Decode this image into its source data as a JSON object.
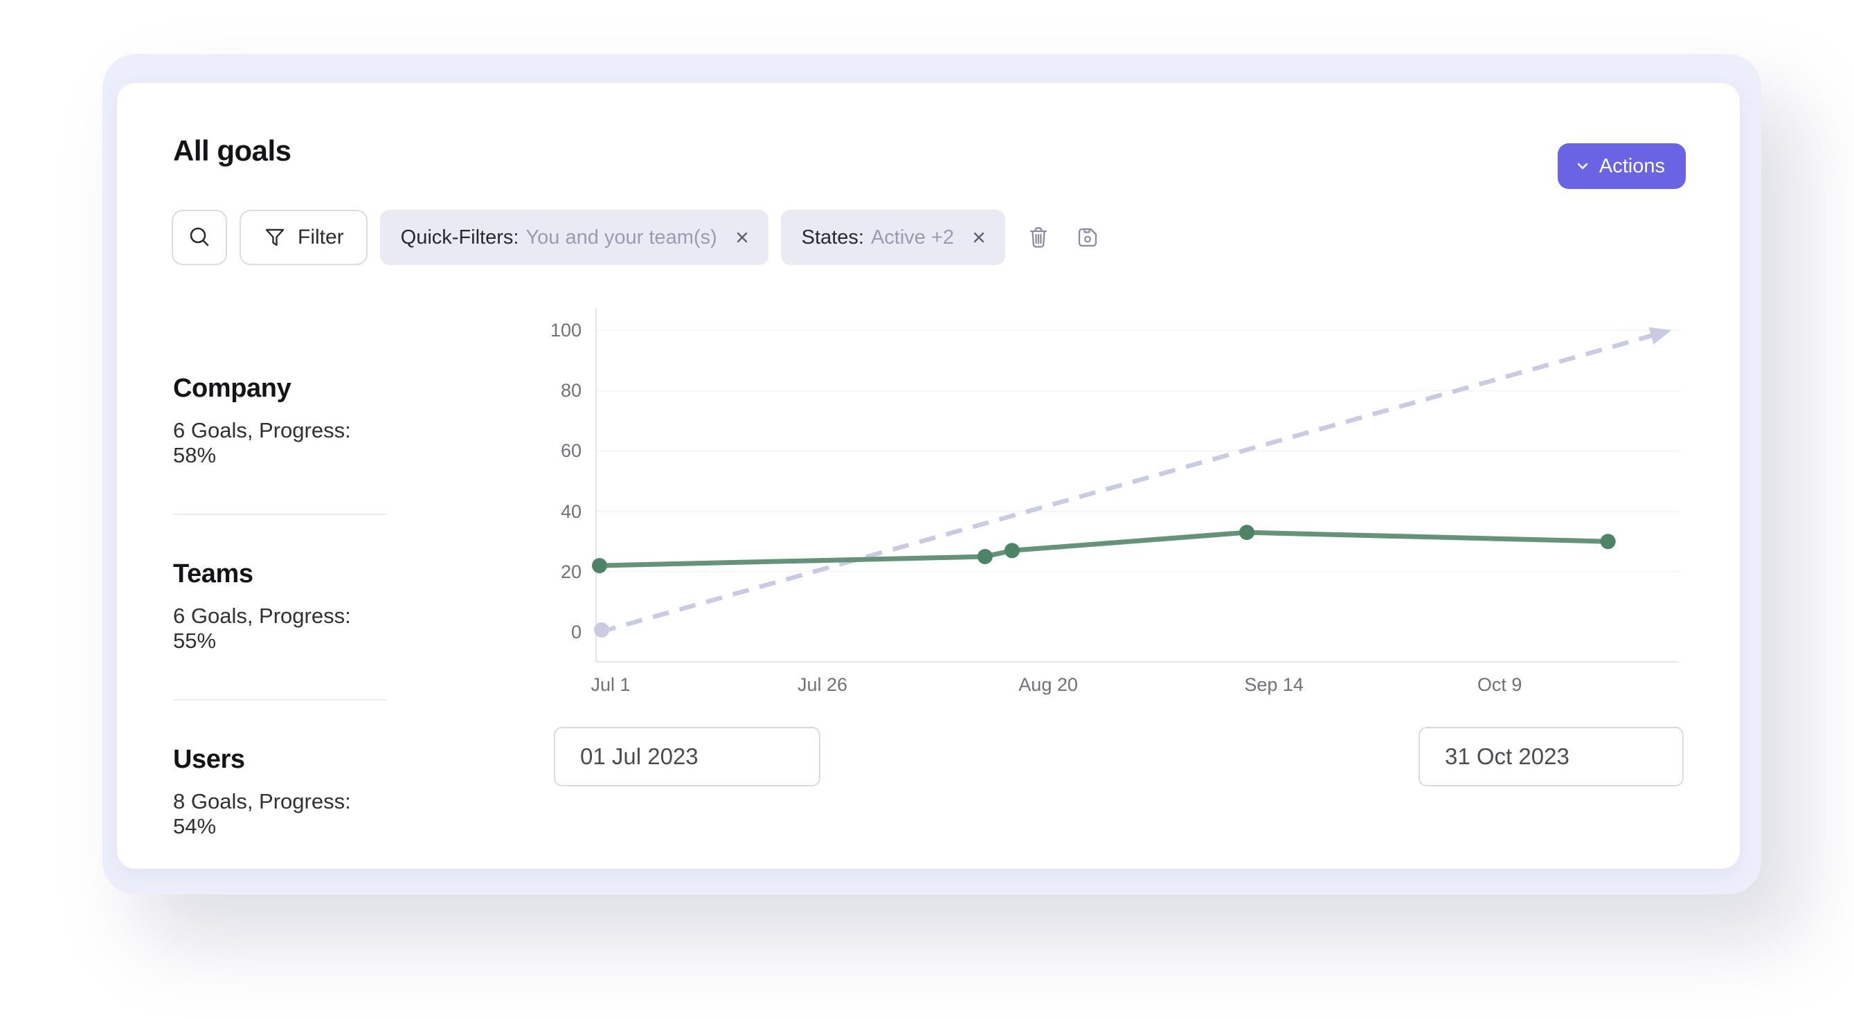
{
  "header": {
    "title": "All goals",
    "actions_label": "Actions"
  },
  "toolbar": {
    "filter_label": "Filter",
    "chips": [
      {
        "label": "Quick-Filters:",
        "value": "You and your team(s)"
      },
      {
        "label": "States:",
        "value": "Active +2"
      }
    ],
    "icon_names": [
      "search-icon",
      "filter-funnel-icon",
      "trash-icon",
      "save-icon"
    ]
  },
  "summary": {
    "items": [
      {
        "title": "Company",
        "subtitle": "6 Goals, Progress: 58%"
      },
      {
        "title": "Teams",
        "subtitle": "6 Goals, Progress: 55%"
      },
      {
        "title": "Users",
        "subtitle": "8 Goals, Progress: 54%"
      }
    ]
  },
  "date_range": {
    "start_value": "01 Jul 2023",
    "end_value": "31 Oct 2023"
  },
  "chart_data": {
    "type": "line",
    "title": "",
    "xlabel": "",
    "ylabel": "",
    "y_axis": {
      "min": 0,
      "max": 100,
      "ticks": [
        0,
        20,
        40,
        60,
        80,
        100
      ]
    },
    "x_axis": {
      "range_days": [
        0,
        120
      ],
      "ticks": [
        {
          "label": "Jul 1",
          "day": 0
        },
        {
          "label": "Jul 26",
          "day": 25
        },
        {
          "label": "Aug 20",
          "day": 50
        },
        {
          "label": "Sep 14",
          "day": 75
        },
        {
          "label": "Oct 9",
          "day": 100
        }
      ]
    },
    "grid": "horizontal-faint",
    "legend": "none",
    "series": [
      {
        "name": "actual-progress",
        "style": "solid-with-points",
        "color": "#649379",
        "point_color": "#4d8466",
        "points": [
          {
            "date": "Jul 1",
            "day": 0,
            "value": 22
          },
          {
            "date": "Aug 13",
            "day": 43,
            "value": 25
          },
          {
            "date": "Aug 16",
            "day": 46,
            "value": 27
          },
          {
            "date": "Sep 11",
            "day": 72,
            "value": 33
          },
          {
            "date": "Oct 21",
            "day": 112,
            "value": 30
          }
        ]
      },
      {
        "name": "expected-pace",
        "style": "dashed-arrow",
        "color": "#c9cbe3",
        "points": [
          {
            "date": "Jul 1",
            "day": 0,
            "value": 0
          },
          {
            "date": "Oct 28",
            "day": 119,
            "value": 100
          }
        ]
      }
    ]
  },
  "colors": {
    "page_bg": "#ffffff",
    "frame_bg": "#edeefb",
    "card_bg": "#ffffff",
    "accent": "#6a63e4",
    "accent_text": "#ffffff",
    "chip_bg": "#e9eaf4",
    "chip_label": "#28282e",
    "chip_value": "#9b9bb0",
    "icon_gray": "#8b8b9f",
    "button_border": "#dcdce9",
    "heading_text": "#141418",
    "body_text": "#2f2f35",
    "axis_text": "#70707b",
    "axis_line": "#e4e4ec",
    "grid_line": "#f6f5f8",
    "series_actual": "#649379",
    "series_actual_point": "#4d8466",
    "series_expected": "#c9cbe3"
  }
}
